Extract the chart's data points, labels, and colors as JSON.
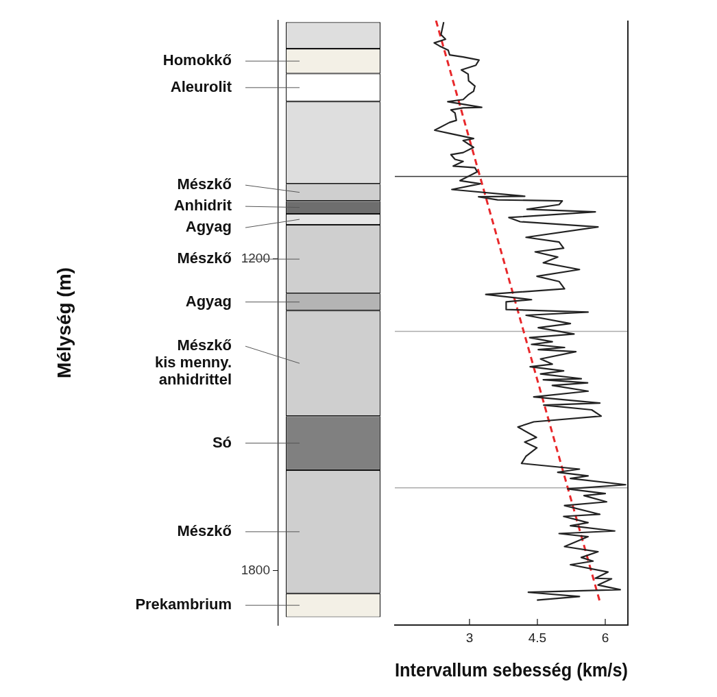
{
  "chart_data": [
    {
      "type": "bar",
      "ylabel": "Mélység (m)",
      "categories": [
        null
      ],
      "ylim": [
        1905,
        742
      ],
      "yticks": [
        1200,
        1800
      ],
      "tick_labels": "y",
      "series": [
        {
          "color": "#dedede",
          "base": [
            745
          ],
          "values": [
            51
          ]
        },
        {
          "name": "Homokkő",
          "color": "#f3f0e6",
          "base": [
            796
          ],
          "values": [
            48
          ]
        },
        {
          "name": "Aleurolit",
          "color": "#ffffff",
          "base": [
            844
          ],
          "values": [
            54
          ]
        },
        {
          "color": "#dedede",
          "base": [
            898
          ],
          "values": [
            158
          ]
        },
        {
          "name": "Mészkő",
          "color": "#cfcfcf",
          "base": [
            1056
          ],
          "values": [
            33
          ]
        },
        {
          "name": "Anhidrit",
          "color": "#6e6e6e",
          "base": [
            1089
          ],
          "values": [
            25
          ]
        },
        {
          "name": "Agyag",
          "color": "#e6e6e6",
          "base": [
            1114
          ],
          "values": [
            21
          ]
        },
        {
          "name": "Mészkő",
          "color": "#cfcfcf",
          "base": [
            1135
          ],
          "values": [
            132
          ]
        },
        {
          "name": "Agyag",
          "color": "#b4b4b4",
          "base": [
            1267
          ],
          "values": [
            33
          ]
        },
        {
          "name": "Mészkő\nkis menny.\nanhidrittel",
          "color": "#cfcfcf",
          "base": [
            1300
          ],
          "values": [
            203
          ]
        },
        {
          "name": "Só",
          "color": "#808080",
          "base": [
            1503
          ],
          "values": [
            104
          ]
        },
        {
          "name": "Mészkő",
          "color": "#cfcfcf",
          "base": [
            1607
          ],
          "values": [
            237
          ]
        },
        {
          "name": "Prekambrium",
          "color": "#f3f0e6",
          "base": [
            1844
          ],
          "values": [
            46
          ]
        }
      ]
    },
    {
      "type": "line",
      "xlabel": "Intervallum sebesség (km/s)",
      "xlim": [
        1.35,
        6.5
      ],
      "xticks": [
        3,
        4.5,
        6
      ],
      "ylim": [
        1905,
        742
      ],
      "tick_labels": "x",
      "marker": "none",
      "series": [
        {
          "type": "line",
          "color": "#222222",
          "x": [
            2.43,
            2.37,
            2.47,
            2.22,
            2.34,
            2.53,
            2.56,
            2.86,
            3.21,
            3.14,
            2.82,
            2.97,
            2.98,
            3.12,
            3.09,
            2.97,
            2.86,
            2.52,
            3.27,
            2.86,
            2.59,
            2.68,
            2.71,
            2.56,
            2.23,
            2.61,
            3.09,
            2.86,
            3.09,
            2.86,
            2.59,
            2.68,
            2.86,
            2.64,
            3.12,
            3.17,
            2.79,
            3.24,
            2.61,
            4.22,
            3.2,
            3.62,
            5.05,
            4.98,
            4.27,
            5.78,
            3.87,
            4.12,
            5.84,
            4.25,
            4.98,
            5.08,
            4.45,
            4.95,
            4.63,
            5.43,
            4.49,
            4.98,
            5.1,
            3.36,
            4.37,
            3.81,
            3.81,
            5.62,
            4.25,
            5.23,
            4.52,
            5.31,
            4.33,
            4.83,
            4.37,
            5.1,
            4.52,
            5.35,
            4.57,
            4.83,
            4.34,
            5.08,
            4.57,
            5.47,
            4.63,
            5.61,
            4.83,
            5.62,
            4.42,
            5.88,
            4.64,
            5.7,
            5.91,
            4.42,
            4.07,
            4.48,
            4.22,
            4.49,
            4.25,
            4.15,
            5.43,
            4.95,
            5.62,
            5.23,
            6.45,
            5.17,
            6,
            5.53,
            6.03,
            5.1,
            5.88,
            5.08,
            5.62,
            5.23,
            6.21,
            4.98,
            5.62,
            5.1,
            5.84,
            5.47,
            5.73,
            5.23,
            6.06,
            5.78,
            6.14,
            5.84,
            6.33,
            4.3,
            5.43,
            4.49
          ],
          "values": [
            745,
            769,
            778,
            785,
            791,
            799,
            808,
            812,
            818,
            828,
            837,
            845,
            858,
            868,
            878,
            885,
            894,
            898,
            909,
            910,
            914,
            920,
            934,
            938,
            953,
            960,
            969,
            973,
            986,
            996,
            1000,
            1009,
            1013,
            1022,
            1025,
            1033,
            1050,
            1056,
            1067,
            1080,
            1081,
            1087,
            1089,
            1096,
            1105,
            1110,
            1121,
            1129,
            1139,
            1159,
            1168,
            1180,
            1187,
            1197,
            1208,
            1221,
            1234,
            1244,
            1258,
            1269,
            1279,
            1283,
            1298,
            1303,
            1309,
            1325,
            1333,
            1345,
            1352,
            1360,
            1365,
            1371,
            1375,
            1379,
            1393,
            1403,
            1408,
            1416,
            1422,
            1431,
            1433,
            1439,
            1444,
            1455,
            1466,
            1478,
            1482,
            1491,
            1503,
            1514,
            1524,
            1544,
            1553,
            1564,
            1580,
            1594,
            1605,
            1611,
            1618,
            1623,
            1635,
            1643,
            1652,
            1656,
            1668,
            1675,
            1692,
            1696,
            1708,
            1714,
            1724,
            1729,
            1735,
            1754,
            1764,
            1775,
            1782,
            1789,
            1803,
            1815,
            1816,
            1828,
            1837,
            1842,
            1850,
            1857
          ]
        },
        {
          "type": "line",
          "color": "#e8282b",
          "line_style": "dashed",
          "x": [
            2.26,
            5.89
          ],
          "values": [
            742,
            1863
          ]
        }
      ],
      "ref_lines": [
        {
          "axis": "y",
          "value": 1042,
          "color": "#333333"
        },
        {
          "axis": "y",
          "value": 1340,
          "color": "#aaaaaa"
        },
        {
          "axis": "y",
          "value": 1641,
          "color": "#aaaaaa"
        }
      ]
    }
  ]
}
